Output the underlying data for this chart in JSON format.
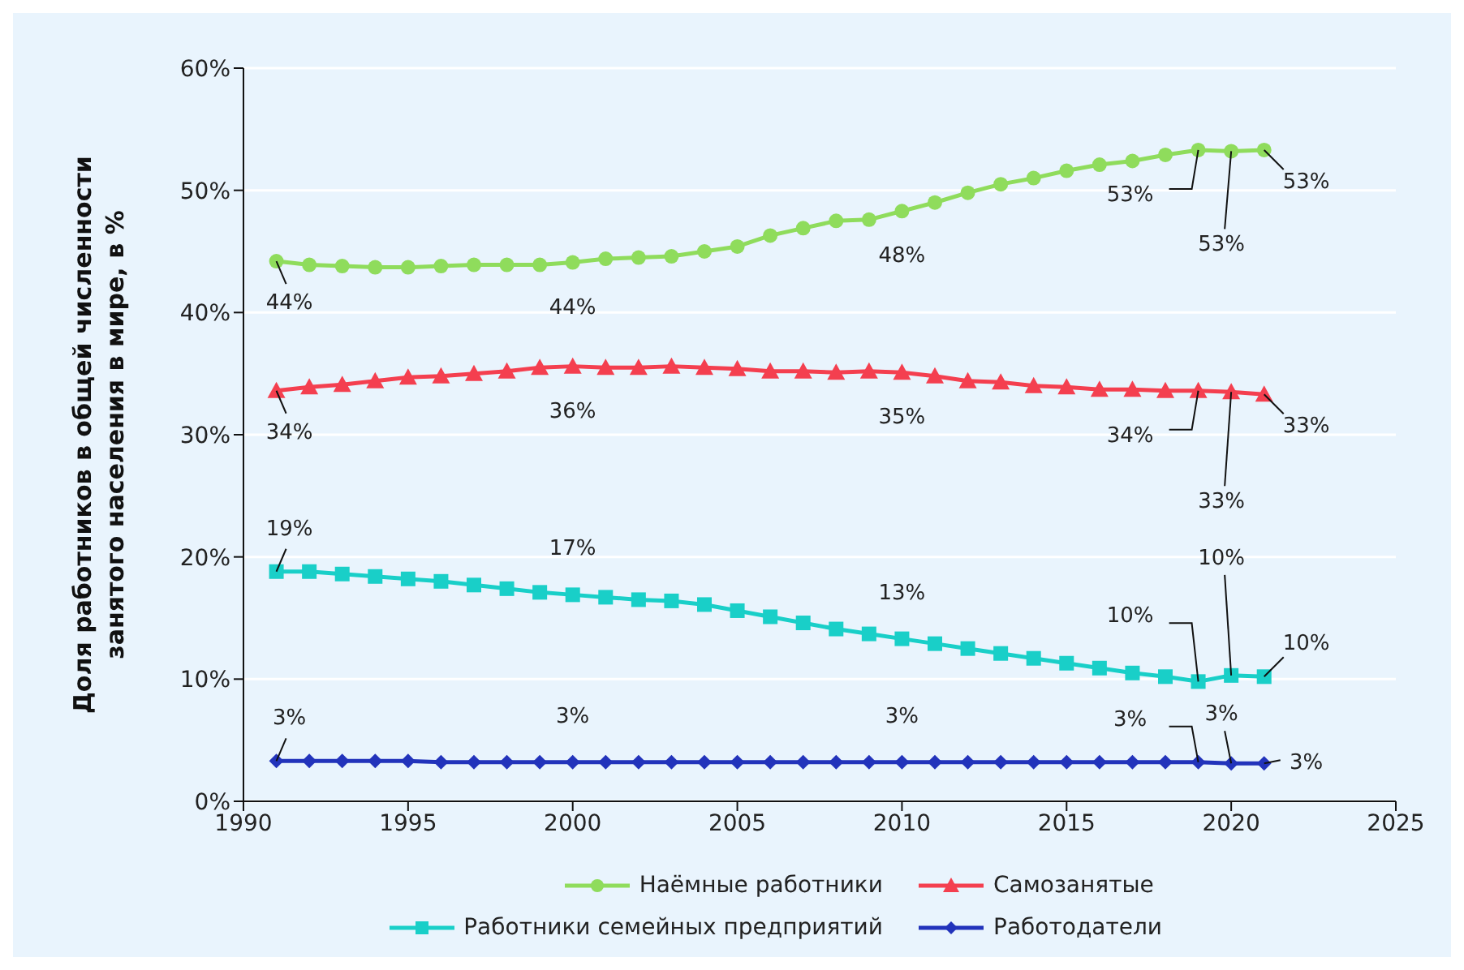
{
  "chart_data": {
    "type": "line",
    "ylabel": "Доля работников в общей численности занятого населения в мире, в %",
    "x": [
      1991,
      1992,
      1993,
      1994,
      1995,
      1996,
      1997,
      1998,
      1999,
      2000,
      2001,
      2002,
      2003,
      2004,
      2005,
      2006,
      2007,
      2008,
      2009,
      2010,
      2011,
      2012,
      2013,
      2014,
      2015,
      2016,
      2017,
      2018,
      2019,
      2020,
      2021
    ],
    "xlim": [
      1990,
      2025
    ],
    "xticks": [
      1990,
      1995,
      2000,
      2005,
      2010,
      2015,
      2020,
      2025
    ],
    "ylim": [
      0,
      60
    ],
    "yticks": [
      {
        "value": 0,
        "label": "0%"
      },
      {
        "value": 10,
        "label": "10%"
      },
      {
        "value": 20,
        "label": "20%"
      },
      {
        "value": 30,
        "label": "30%"
      },
      {
        "value": 40,
        "label": "40%"
      },
      {
        "value": 50,
        "label": "50%"
      },
      {
        "value": 60,
        "label": "60%"
      }
    ],
    "grid": "y",
    "legend": "bottom",
    "line_style": "solid",
    "series": [
      {
        "name": "Наёмные работники",
        "color": "#8fdc5c",
        "marker": "circle",
        "values": [
          44.2,
          43.9,
          43.8,
          43.7,
          43.7,
          43.8,
          43.9,
          43.9,
          43.9,
          44.1,
          44.4,
          44.5,
          44.6,
          45.0,
          45.4,
          46.3,
          46.9,
          47.5,
          47.6,
          48.3,
          49.0,
          49.8,
          50.5,
          51.0,
          51.6,
          52.1,
          52.4,
          52.9,
          53.3,
          53.2,
          53.3
        ],
        "value_labels": [
          "44%",
          null,
          null,
          null,
          null,
          null,
          null,
          null,
          null,
          "44%",
          null,
          null,
          null,
          null,
          null,
          null,
          null,
          null,
          null,
          "48%",
          null,
          null,
          null,
          null,
          null,
          null,
          null,
          null,
          "53%",
          "53%",
          "53%"
        ]
      },
      {
        "name": "Самозанятые",
        "color": "#f43f4f",
        "marker": "triangle",
        "values": [
          33.6,
          33.9,
          34.1,
          34.4,
          34.7,
          34.8,
          35.0,
          35.2,
          35.5,
          35.6,
          35.5,
          35.5,
          35.6,
          35.5,
          35.4,
          35.2,
          35.2,
          35.1,
          35.2,
          35.1,
          34.8,
          34.4,
          34.3,
          34.0,
          33.9,
          33.7,
          33.7,
          33.6,
          33.6,
          33.5,
          33.3
        ],
        "value_labels": [
          "34%",
          null,
          null,
          null,
          null,
          null,
          null,
          null,
          null,
          "36%",
          null,
          null,
          null,
          null,
          null,
          null,
          null,
          null,
          null,
          "35%",
          null,
          null,
          null,
          null,
          null,
          null,
          null,
          null,
          "34%",
          "33%",
          "33%"
        ]
      },
      {
        "name": "Работники семейных предприятий",
        "color": "#19cfc8",
        "marker": "square",
        "values": [
          18.8,
          18.8,
          18.6,
          18.4,
          18.2,
          18.0,
          17.7,
          17.4,
          17.1,
          16.9,
          16.7,
          16.5,
          16.4,
          16.1,
          15.6,
          15.1,
          14.6,
          14.1,
          13.7,
          13.3,
          12.9,
          12.5,
          12.1,
          11.7,
          11.3,
          10.9,
          10.5,
          10.2,
          9.8,
          10.3,
          10.2
        ],
        "value_labels": [
          "19%",
          null,
          null,
          null,
          null,
          null,
          null,
          null,
          null,
          "17%",
          null,
          null,
          null,
          null,
          null,
          null,
          null,
          null,
          null,
          "13%",
          null,
          null,
          null,
          null,
          null,
          null,
          null,
          null,
          "10%",
          "10%",
          "10%"
        ]
      },
      {
        "name": "Работодатели",
        "color": "#2233bb",
        "marker": "diamond",
        "values": [
          3.3,
          3.3,
          3.3,
          3.3,
          3.3,
          3.2,
          3.2,
          3.2,
          3.2,
          3.2,
          3.2,
          3.2,
          3.2,
          3.2,
          3.2,
          3.2,
          3.2,
          3.2,
          3.2,
          3.2,
          3.2,
          3.2,
          3.2,
          3.2,
          3.2,
          3.2,
          3.2,
          3.2,
          3.2,
          3.1,
          3.1
        ],
        "value_labels": [
          "3%",
          null,
          null,
          null,
          null,
          null,
          null,
          null,
          null,
          "3%",
          null,
          null,
          null,
          null,
          null,
          null,
          null,
          null,
          null,
          "3%",
          null,
          null,
          null,
          null,
          null,
          null,
          null,
          null,
          "3%",
          "3%",
          "3%"
        ]
      }
    ]
  }
}
